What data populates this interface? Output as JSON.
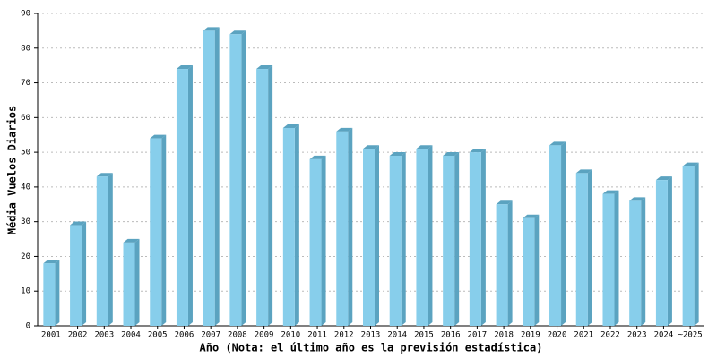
{
  "chart_data": {
    "type": "bar",
    "y_label": "Média Vuelos Diarios",
    "x_label": "Año (Nota: el último año es la previsión estadística)",
    "categories": [
      "2001",
      "2002",
      "2003",
      "2004",
      "2005",
      "2006",
      "2007",
      "2008",
      "2009",
      "2010",
      "2011",
      "2012",
      "2013",
      "2014",
      "2015",
      "2016",
      "2017",
      "2018",
      "2019",
      "2020",
      "2021",
      "2022",
      "2023",
      "2024",
      "~2025"
    ],
    "values": [
      18,
      29,
      43,
      24,
      54,
      74,
      85,
      84,
      74,
      57,
      48,
      56,
      51,
      49,
      51,
      49,
      50,
      35,
      31,
      52,
      44,
      38,
      36,
      42,
      46
    ],
    "color": "#87ceeb",
    "ylim": [
      0,
      90
    ],
    "yticks": [
      0,
      10,
      20,
      30,
      40,
      50,
      60,
      70,
      80,
      90
    ],
    "grid": true
  }
}
